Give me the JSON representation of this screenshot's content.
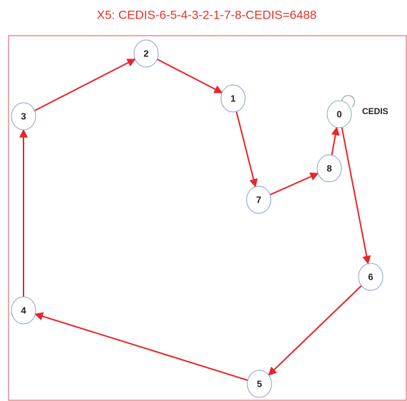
{
  "title": "X5: CEDIS-6-5-4-3-2-1-7-8-CEDIS=6488",
  "depot_label": "CEDIS",
  "nodes": [
    {
      "label": "0"
    },
    {
      "label": "1"
    },
    {
      "label": "2"
    },
    {
      "label": "3"
    },
    {
      "label": "4"
    },
    {
      "label": "5"
    },
    {
      "label": "6"
    },
    {
      "label": "7"
    },
    {
      "label": "8"
    }
  ]
}
